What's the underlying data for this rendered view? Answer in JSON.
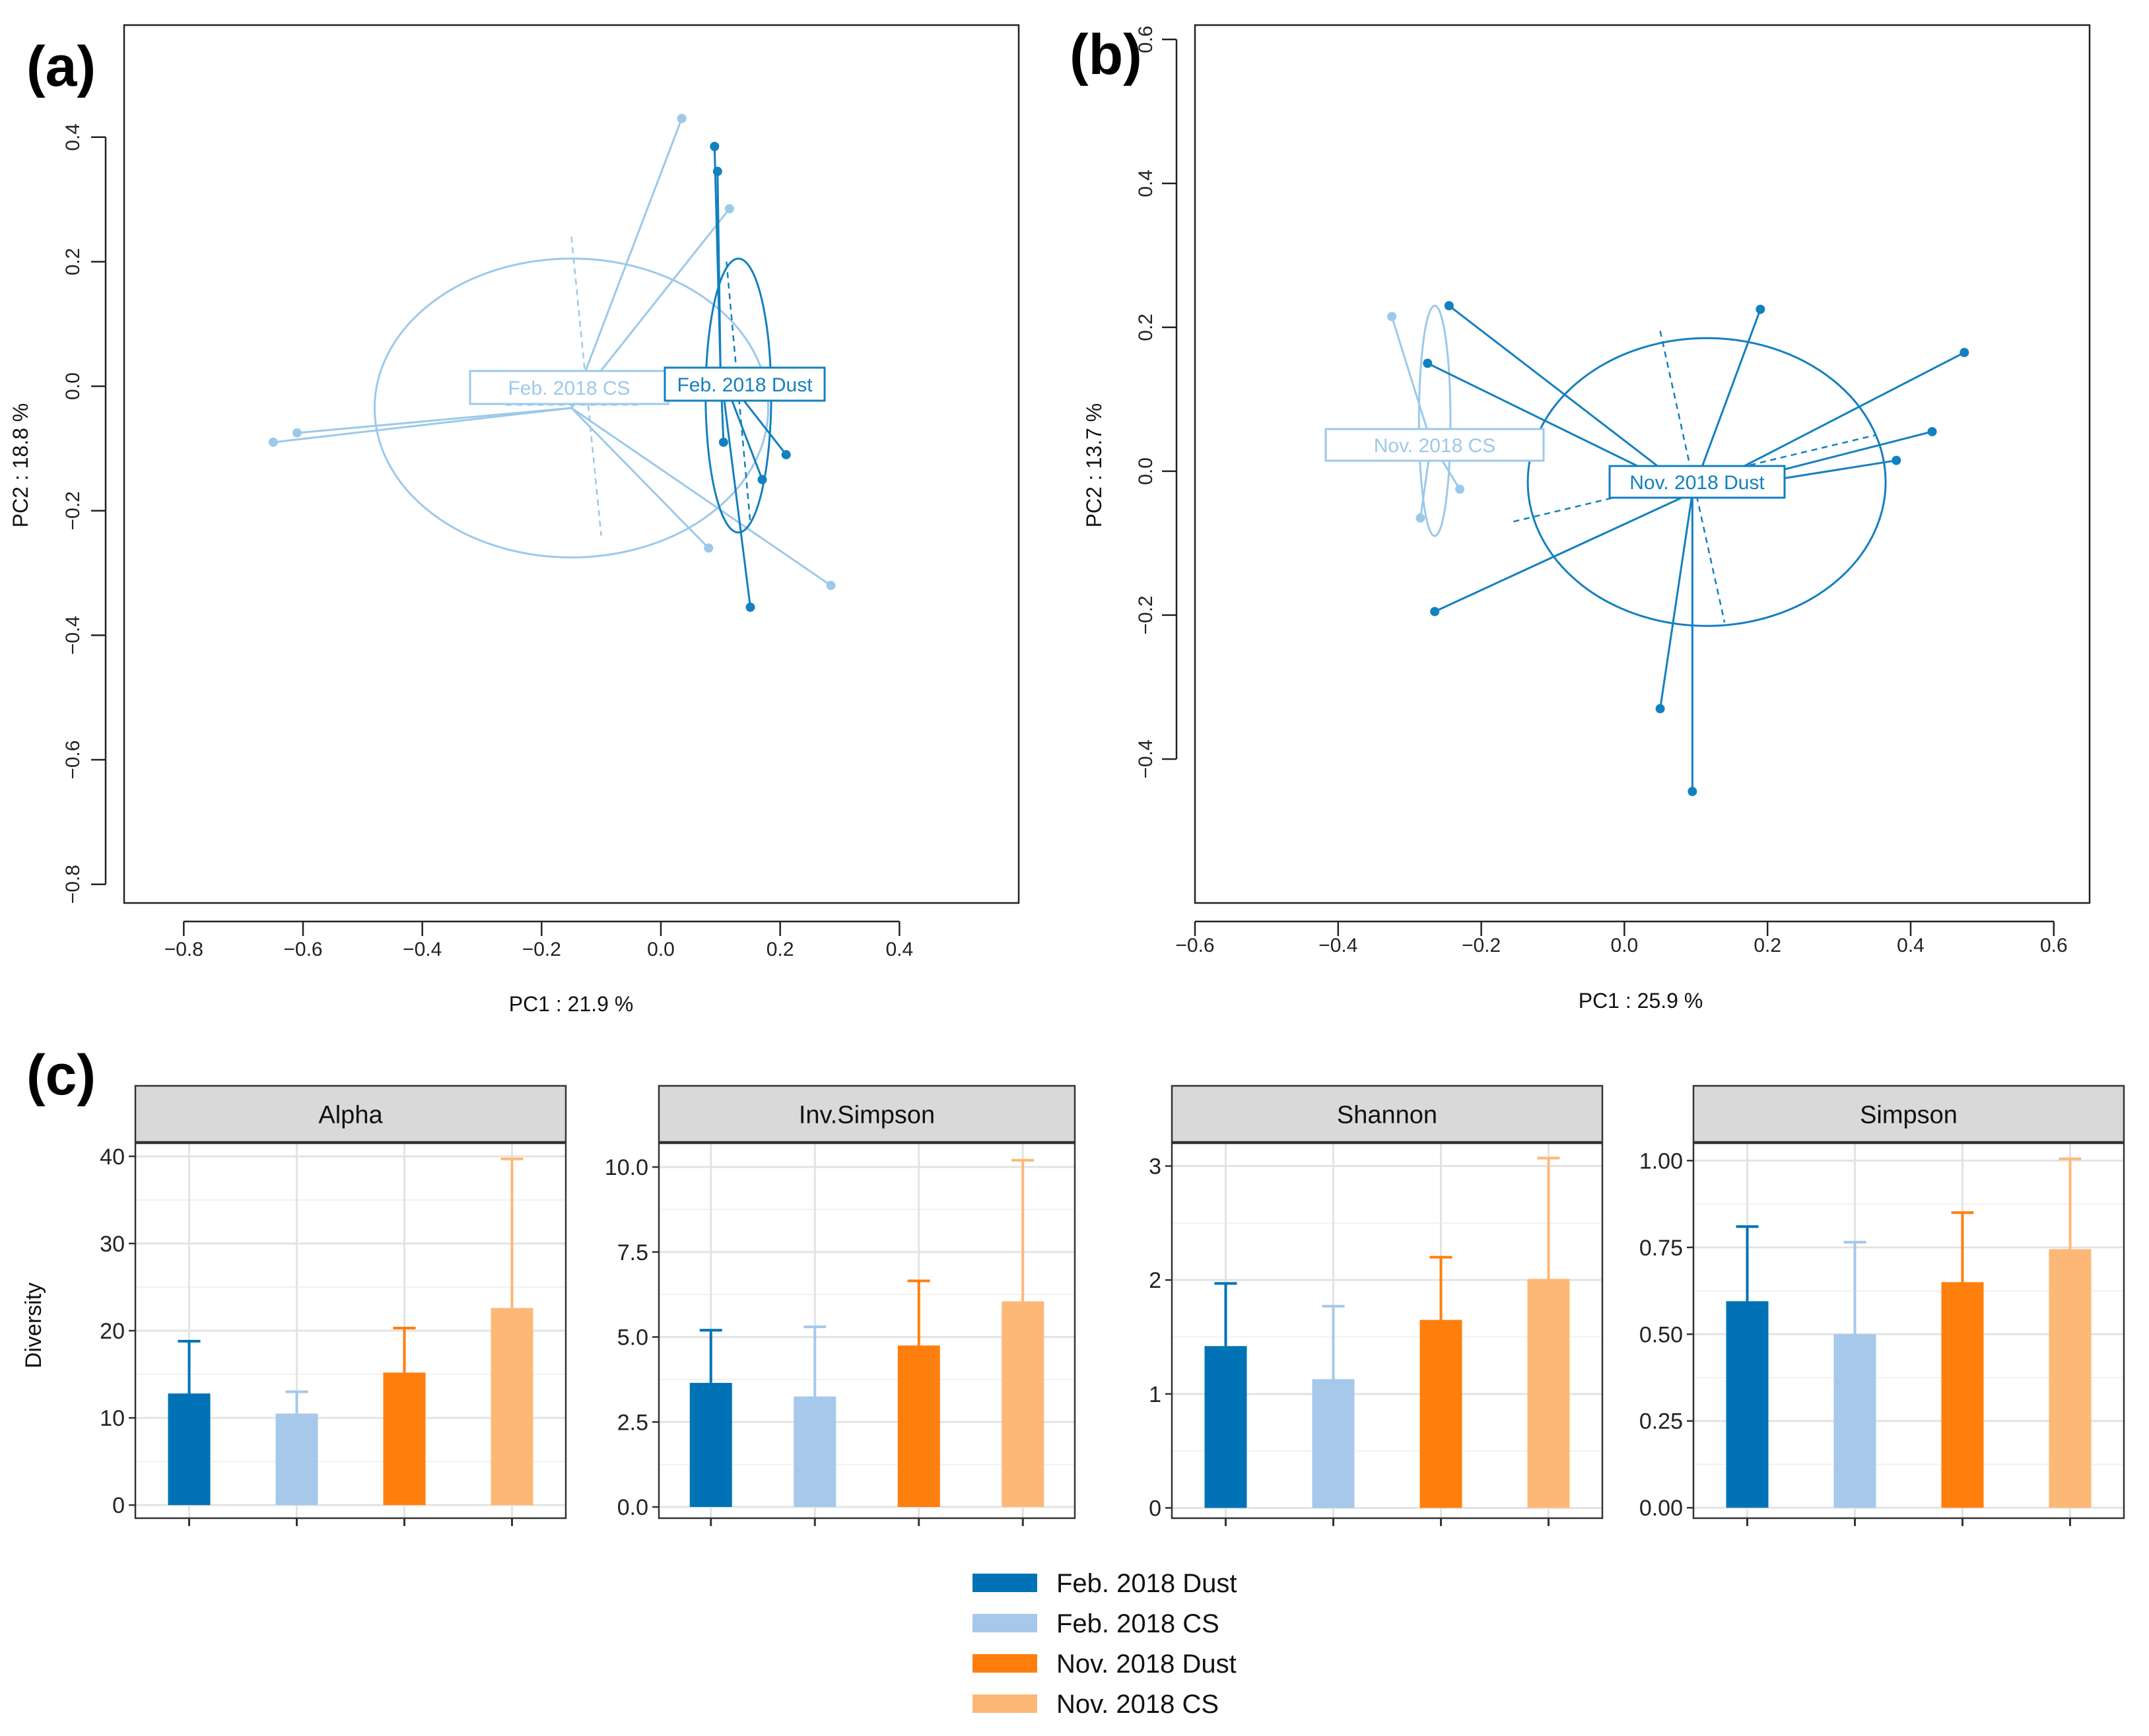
{
  "colors": {
    "feb_dust": "#0072B5",
    "feb_cs": "#A6C8EA",
    "nov_dust": "#FF7F0E",
    "nov_cs": "#FDB877",
    "pca_dark": "#1380BF",
    "pca_light": "#9CC9EA"
  },
  "chart_data": [
    {
      "panel": "(a)",
      "type": "scatter",
      "xlabel": "PC1 :  21.9 %",
      "ylabel": "PC2 :  18.8 %",
      "xlim": [
        -0.9,
        0.6
      ],
      "ylim": [
        -0.83,
        0.58
      ],
      "xticks": [
        -0.8,
        -0.6,
        -0.4,
        -0.2,
        0.0,
        0.2,
        0.4
      ],
      "xtick_labels": [
        "−0.8",
        "−0.6",
        "−0.4",
        "−0.2",
        "0.0",
        "0.2",
        "0.4"
      ],
      "yticks": [
        -0.8,
        -0.6,
        -0.4,
        -0.2,
        0.0,
        0.2,
        0.4
      ],
      "ytick_labels": [
        "−0.8",
        "−0.6",
        "−0.4",
        "−0.2",
        "0.0",
        "0.2",
        "0.4"
      ],
      "groups": [
        {
          "name": "Feb. 2018 CS",
          "color_key": "pca_light",
          "centroid": [
            -0.15,
            -0.035
          ],
          "ellipse": {
            "cx": -0.15,
            "cy": -0.035,
            "rx": 0.33,
            "ry": 0.24
          },
          "ellipse_axes": [
            [
              -0.15,
              0.24,
              -0.1,
              -0.24
            ],
            [
              -0.26,
              -0.03,
              -0.04,
              -0.03
            ]
          ],
          "points": [
            [
              0.035,
              0.43
            ],
            [
              0.115,
              0.285
            ],
            [
              -0.61,
              -0.075
            ],
            [
              -0.65,
              -0.09
            ],
            [
              0.08,
              -0.26
            ],
            [
              0.285,
              -0.32
            ]
          ]
        },
        {
          "name": "Feb. 2018 Dust",
          "color_key": "pca_dark",
          "centroid": [
            0.1,
            0.025
          ],
          "ellipse": {
            "cx": 0.13,
            "cy": -0.015,
            "rx": 0.055,
            "ry": 0.22
          },
          "ellipse_axes": [
            [
              0.11,
              0.2,
              0.15,
              -0.22
            ]
          ],
          "points": [
            [
              0.09,
              0.385
            ],
            [
              0.095,
              0.345
            ],
            [
              0.105,
              -0.09
            ],
            [
              0.21,
              -0.11
            ],
            [
              0.17,
              -0.15
            ],
            [
              0.15,
              -0.355
            ]
          ]
        }
      ]
    },
    {
      "panel": "(b)",
      "type": "scatter",
      "xlabel": "PC1 :  25.9 %",
      "ylabel": "PC2 :  13.7 %",
      "xlim": [
        -0.6,
        0.65
      ],
      "ylim": [
        -0.6,
        0.62
      ],
      "xticks": [
        -0.6,
        -0.4,
        -0.2,
        0.0,
        0.2,
        0.4,
        0.6
      ],
      "xtick_labels": [
        "−0.6",
        "−0.4",
        "−0.2",
        "0.0",
        "0.2",
        "0.4",
        "0.6"
      ],
      "yticks": [
        -0.4,
        -0.2,
        0.0,
        0.2,
        0.4,
        0.6
      ],
      "ytick_labels": [
        "−0.4",
        "−0.2",
        "0.0",
        "0.2",
        "0.4",
        "0.6"
      ],
      "groups": [
        {
          "name": "Nov. 2018 CS",
          "color_key": "pca_light",
          "centroid": [
            -0.27,
            0.04
          ],
          "ellipse": {
            "cx": -0.265,
            "cy": 0.07,
            "rx": 0.022,
            "ry": 0.16
          },
          "ellipse_axes": [],
          "points": [
            [
              -0.325,
              0.215
            ],
            [
              -0.285,
              -0.065
            ],
            [
              -0.23,
              -0.025
            ]
          ]
        },
        {
          "name": "Nov. 2018 Dust",
          "color_key": "pca_dark",
          "centroid": [
            0.095,
            -0.03
          ],
          "ellipse": {
            "cx": 0.115,
            "cy": -0.015,
            "rx": 0.25,
            "ry": 0.2
          },
          "ellipse_axes": [
            [
              0.05,
              0.195,
              0.14,
              -0.21
            ],
            [
              -0.155,
              -0.07,
              0.35,
              0.05
            ]
          ],
          "points": [
            [
              -0.245,
              0.23
            ],
            [
              -0.275,
              0.15
            ],
            [
              0.19,
              0.225
            ],
            [
              0.475,
              0.165
            ],
            [
              0.43,
              0.055
            ],
            [
              0.38,
              0.015
            ],
            [
              -0.265,
              -0.195
            ],
            [
              0.05,
              -0.33
            ],
            [
              0.095,
              -0.445
            ]
          ]
        }
      ]
    },
    {
      "panel": "(c)",
      "type": "bar",
      "ylabel": "Diversity",
      "categories": [
        "Feb. 2018 Dust",
        "Feb. 2018 CS",
        "Nov. 2018 Dust",
        "Nov. 2018 CS"
      ],
      "color_keys": [
        "feb_dust",
        "feb_cs",
        "nov_dust",
        "nov_cs"
      ],
      "facets": [
        {
          "title": "Alpha",
          "ylim": [
            -1.5,
            41.5
          ],
          "yticks": [
            0,
            10,
            20,
            30,
            40
          ],
          "ytick_labels": [
            "0",
            "10",
            "20",
            "30",
            "40"
          ],
          "values": [
            12.8,
            10.5,
            15.2,
            22.6
          ],
          "errors": [
            6.0,
            2.5,
            5.1,
            17.1
          ]
        },
        {
          "title": "Inv.Simpson",
          "ylim": [
            -0.33,
            10.7
          ],
          "yticks": [
            0.0,
            2.5,
            5.0,
            7.5,
            10.0
          ],
          "ytick_labels": [
            "0.0",
            "2.5",
            "5.0",
            "7.5",
            "10.0"
          ],
          "values": [
            3.65,
            3.25,
            4.75,
            6.05
          ],
          "errors": [
            1.55,
            2.05,
            1.9,
            4.15
          ]
        },
        {
          "title": "Shannon",
          "ylim": [
            -0.09,
            3.2
          ],
          "yticks": [
            0,
            1,
            2,
            3
          ],
          "ytick_labels": [
            "0",
            "1",
            "2",
            "3"
          ],
          "values": [
            1.42,
            1.13,
            1.65,
            2.01
          ],
          "errors": [
            0.55,
            0.64,
            0.55,
            1.06
          ]
        },
        {
          "title": "Simpson",
          "ylim": [
            -0.03,
            1.05
          ],
          "yticks": [
            0.0,
            0.25,
            0.5,
            0.75,
            1.0
          ],
          "ytick_labels": [
            "0.00",
            "0.25",
            "0.50",
            "0.75",
            "1.00"
          ],
          "values": [
            0.595,
            0.5,
            0.65,
            0.745
          ],
          "errors": [
            0.215,
            0.265,
            0.2,
            0.26
          ]
        }
      ],
      "legend": [
        "Feb. 2018 Dust",
        "Feb. 2018 CS",
        "Nov. 2018 Dust",
        "Nov. 2018 CS"
      ]
    }
  ]
}
